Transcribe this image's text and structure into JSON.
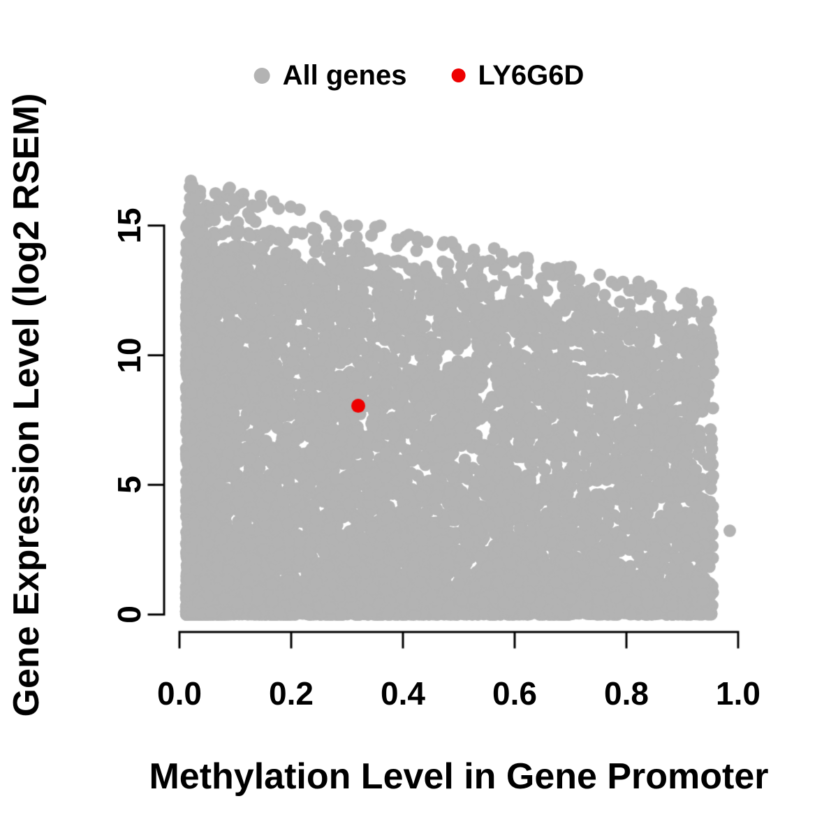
{
  "legend": {
    "items": [
      {
        "label": "All genes",
        "color": "#b3b3b3"
      },
      {
        "label": "LY6G6D",
        "color": "#ee0000"
      }
    ]
  },
  "colors": {
    "background": "#ffffff",
    "axis": "#000000",
    "text": "#000000",
    "all_genes_gray": "#b3b3b3",
    "highlight_red": "#ee0000"
  },
  "chart_data": {
    "type": "scatter",
    "title": "",
    "xlabel": "Methylation Level in Gene Promoter",
    "ylabel": "Gene Expression Level (log2 RSEM)",
    "xlim": [
      0,
      1.0
    ],
    "ylim": [
      0,
      16.9
    ],
    "grid": false,
    "legend_position": "top-center",
    "x_tick_labels": [
      "0.0",
      "0.2",
      "0.4",
      "0.6",
      "0.8",
      "1.0"
    ],
    "x_tick_values": [
      0,
      0.2,
      0.4,
      0.6,
      0.8,
      1.0
    ],
    "y_tick_labels": [
      "0",
      "5",
      "10",
      "15"
    ],
    "y_tick_values": [
      0,
      5,
      10,
      15
    ],
    "series": [
      {
        "name": "All genes",
        "type": "point-cloud",
        "color": "#b3b3b3",
        "marker_radius_px": 9,
        "n_points": 9200,
        "seed": 11,
        "x_min": 0.012,
        "x_max": 0.955,
        "mix_left_column": 0.09,
        "left_column_width": 0.035,
        "mix_left_biased": 0.58,
        "left_bias_pow": 1.45,
        "dense_top_intercept": 14.2,
        "dense_top_slope": -3.6,
        "envelope_intercept": 16.9,
        "envelope_slope": -4.9,
        "bulk_pow": 1.18,
        "p_bottom_band": 0.17,
        "bottom_band_max": 1.3,
        "bottom_pow": 2.2,
        "p_top_scatter": 0.055,
        "top_pow": 1.8,
        "extra_points": [
          [
            0.985,
            3.23
          ]
        ]
      },
      {
        "name": "LY6G6D",
        "type": "point",
        "color": "#ee0000",
        "marker_radius_px": 10,
        "x": 0.32,
        "y": 8.05
      }
    ]
  }
}
